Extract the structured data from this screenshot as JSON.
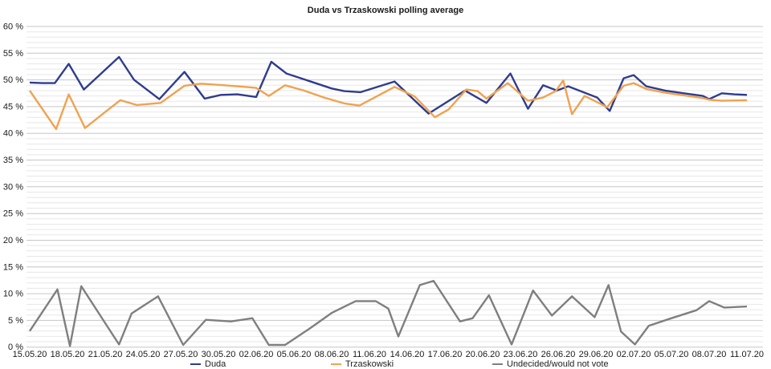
{
  "title": "Duda vs Trzaskowski polling average",
  "colors": {
    "duda": "#2f3c8f",
    "trzaskowski": "#f0a24f",
    "undecided": "#7f7f7f",
    "grid_minor": "#e7e7e7",
    "grid_major": "#c6c6c6",
    "text": "#1a1a1a"
  },
  "chart_data": {
    "type": "line",
    "title": "Duda vs Trzaskowski polling average",
    "xlabel": "",
    "ylabel": "",
    "ylim": [
      0,
      60
    ],
    "y_tick_step": 5,
    "y_tick_labels": [
      "0 %",
      "5 %",
      "10 %",
      "15 %",
      "20 %",
      "25 %",
      "30 %",
      "35 %",
      "40 %",
      "45 %",
      "50 %",
      "55 %",
      "60 %"
    ],
    "x_tick_labels": [
      "15.05.20",
      "18.05.20",
      "21.05.20",
      "24.05.20",
      "27.05.20",
      "30.05.20",
      "02.06.20",
      "05.06.20",
      "08.06.20",
      "11.06.20",
      "14.06.20",
      "17.06.20",
      "20.06.20",
      "23.06.20",
      "26.06.20",
      "29.06.20",
      "02.07.20",
      "05.07.20",
      "08.07.20",
      "11.07.20"
    ],
    "x_days_per_tick": 3,
    "x_total_days": 57,
    "grid": "horizontal, minor every 1%, major every 5%",
    "legend_position": "bottom",
    "series": [
      {
        "name": "Duda",
        "color": "#2f3c8f",
        "points": [
          [
            0,
            49.5
          ],
          [
            1,
            49.4
          ],
          [
            2,
            49.4
          ],
          [
            3.1,
            53.0
          ],
          [
            4.3,
            48.2
          ],
          [
            7.1,
            54.3
          ],
          [
            8.3,
            50.0
          ],
          [
            10.3,
            46.4
          ],
          [
            12.3,
            51.5
          ],
          [
            13.9,
            46.5
          ],
          [
            15.2,
            47.2
          ],
          [
            16.5,
            47.3
          ],
          [
            18,
            46.8
          ],
          [
            19.2,
            53.4
          ],
          [
            20.4,
            51.2
          ],
          [
            24,
            48.4
          ],
          [
            25,
            47.9
          ],
          [
            26.3,
            47.7
          ],
          [
            29,
            49.7
          ],
          [
            31.7,
            43.7
          ],
          [
            34.6,
            48.0
          ],
          [
            36.3,
            45.7
          ],
          [
            38.2,
            51.2
          ],
          [
            39.6,
            44.6
          ],
          [
            40.8,
            49.0
          ],
          [
            41.9,
            48.0
          ],
          [
            42.8,
            48.8
          ],
          [
            45.1,
            46.7
          ],
          [
            46.1,
            44.2
          ],
          [
            47.2,
            50.3
          ],
          [
            48,
            50.9
          ],
          [
            49,
            48.8
          ],
          [
            50.5,
            48.0
          ],
          [
            52,
            47.5
          ],
          [
            53.5,
            47.0
          ],
          [
            54,
            46.4
          ],
          [
            55,
            47.5
          ],
          [
            56,
            47.3
          ],
          [
            57,
            47.2
          ]
        ]
      },
      {
        "name": "Trzaskowski",
        "color": "#f0a24f",
        "points": [
          [
            0,
            48.0
          ],
          [
            2.1,
            40.8
          ],
          [
            3.1,
            47.3
          ],
          [
            4.4,
            41.0
          ],
          [
            6,
            44.0
          ],
          [
            7.2,
            46.2
          ],
          [
            8.5,
            45.3
          ],
          [
            10.4,
            45.7
          ],
          [
            12.3,
            48.9
          ],
          [
            13.6,
            49.3
          ],
          [
            15.5,
            49.0
          ],
          [
            17.1,
            48.7
          ],
          [
            18,
            48.5
          ],
          [
            19,
            47.0
          ],
          [
            20.3,
            49.0
          ],
          [
            21.8,
            48.0
          ],
          [
            23.4,
            46.7
          ],
          [
            25,
            45.6
          ],
          [
            26.2,
            45.2
          ],
          [
            29,
            48.7
          ],
          [
            30.6,
            46.9
          ],
          [
            32.2,
            43.0
          ],
          [
            33.3,
            44.5
          ],
          [
            34.7,
            48.2
          ],
          [
            35.6,
            47.9
          ],
          [
            36.3,
            46.5
          ],
          [
            38,
            49.4
          ],
          [
            39.6,
            46.1
          ],
          [
            40.8,
            46.7
          ],
          [
            41.8,
            47.9
          ],
          [
            42.4,
            49.9
          ],
          [
            43.1,
            43.6
          ],
          [
            44.1,
            47.0
          ],
          [
            45.9,
            44.9
          ],
          [
            47.2,
            48.9
          ],
          [
            48,
            49.4
          ],
          [
            49,
            48.3
          ],
          [
            50.5,
            47.6
          ],
          [
            52,
            47.1
          ],
          [
            53.5,
            46.6
          ],
          [
            54,
            46.3
          ],
          [
            55,
            46.1
          ],
          [
            57,
            46.2
          ]
        ]
      },
      {
        "name": "Undecided/would not vote",
        "color": "#7f7f7f",
        "points": [
          [
            0,
            3.0
          ],
          [
            2.2,
            10.8
          ],
          [
            3.2,
            0.2
          ],
          [
            4.1,
            11.4
          ],
          [
            7.1,
            0.5
          ],
          [
            8.1,
            6.3
          ],
          [
            10.2,
            9.5
          ],
          [
            12.2,
            0.4
          ],
          [
            14,
            5.1
          ],
          [
            16,
            4.8
          ],
          [
            17.7,
            5.4
          ],
          [
            19,
            0.4
          ],
          [
            20.3,
            0.4
          ],
          [
            22.2,
            3.4
          ],
          [
            24,
            6.4
          ],
          [
            25.9,
            8.6
          ],
          [
            27.5,
            8.6
          ],
          [
            28.5,
            7.2
          ],
          [
            29.3,
            2.0
          ],
          [
            31,
            11.6
          ],
          [
            32.1,
            12.4
          ],
          [
            34.2,
            4.8
          ],
          [
            35.2,
            5.4
          ],
          [
            36.5,
            9.7
          ],
          [
            38.3,
            0.5
          ],
          [
            40,
            10.6
          ],
          [
            41.5,
            5.9
          ],
          [
            43.1,
            9.5
          ],
          [
            44.9,
            5.6
          ],
          [
            46,
            11.6
          ],
          [
            47,
            2.9
          ],
          [
            48.1,
            0.5
          ],
          [
            49.2,
            4.0
          ],
          [
            51,
            5.4
          ],
          [
            53,
            6.9
          ],
          [
            54,
            8.6
          ],
          [
            55.2,
            7.4
          ],
          [
            57,
            7.6
          ]
        ]
      }
    ]
  },
  "legend": {
    "items": [
      "Duda",
      "Trzaskowski",
      "Undecided/would not vote"
    ]
  }
}
